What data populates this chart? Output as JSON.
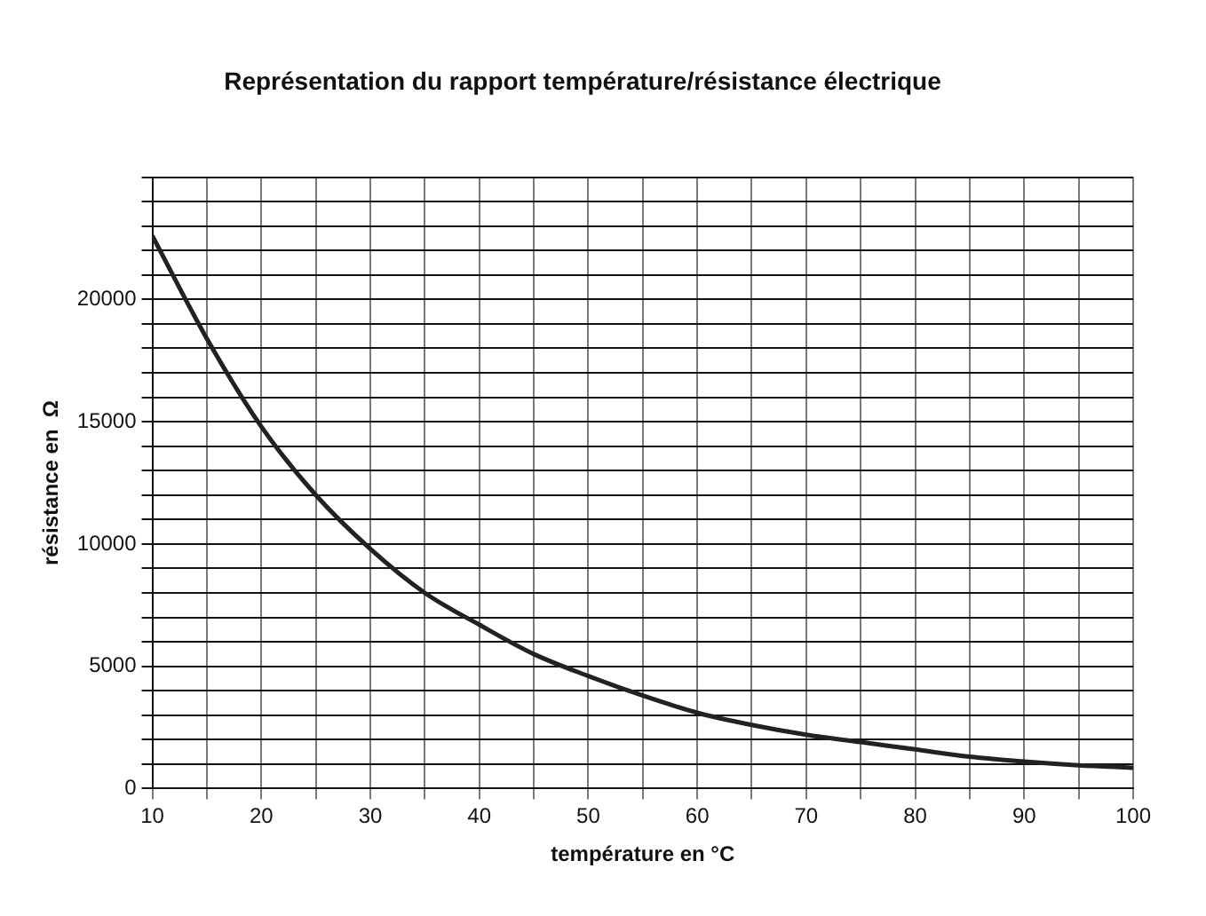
{
  "chart_data": {
    "type": "line",
    "title": "Représentation du rapport température/résistance électrique",
    "xlabel": "température en °C",
    "ylabel": "résistance en  Ω",
    "x": [
      10,
      15,
      20,
      25,
      30,
      35,
      40,
      45,
      50,
      55,
      60,
      65,
      70,
      75,
      80,
      85,
      90,
      95,
      100
    ],
    "series": [
      {
        "color": "#222222",
        "values": [
          22600,
          18400,
          14800,
          12000,
          9800,
          8000,
          6700,
          5500,
          4600,
          3800,
          3100,
          2600,
          2200,
          1900,
          1600,
          1300,
          1100,
          950,
          850
        ]
      }
    ],
    "xlim": [
      10,
      100
    ],
    "xticks": [
      10,
      {
        "value": 15,
        "label": null
      },
      20,
      {
        "value": 25,
        "label": null
      },
      30,
      {
        "value": 35,
        "label": null
      },
      40,
      {
        "value": 45,
        "label": null
      },
      50,
      {
        "value": 55,
        "label": null
      },
      60,
      {
        "value": 65,
        "label": null
      },
      70,
      {
        "value": 75,
        "label": null
      },
      80,
      {
        "value": 85,
        "label": null
      },
      90,
      {
        "value": 95,
        "label": null
      },
      100
    ],
    "ylim": [
      0,
      25000
    ],
    "yticks": [
      0,
      {
        "value": 1000,
        "label": null
      },
      {
        "value": 2000,
        "label": null
      },
      {
        "value": 3000,
        "label": null
      },
      {
        "value": 4000,
        "label": null
      },
      5000,
      {
        "value": 6000,
        "label": null
      },
      {
        "value": 7000,
        "label": null
      },
      {
        "value": 8000,
        "label": null
      },
      {
        "value": 9000,
        "label": null
      },
      10000,
      {
        "value": 11000,
        "label": null
      },
      {
        "value": 12000,
        "label": null
      },
      {
        "value": 13000,
        "label": null
      },
      {
        "value": 14000,
        "label": null
      },
      15000,
      {
        "value": 16000,
        "label": null
      },
      {
        "value": 17000,
        "label": null
      },
      {
        "value": 18000,
        "label": null
      },
      {
        "value": 19000,
        "label": null
      },
      20000,
      {
        "value": 21000,
        "label": null
      },
      {
        "value": 22000,
        "label": null
      },
      {
        "value": 23000,
        "label": null
      },
      {
        "value": 24000,
        "label": null
      },
      {
        "value": 25000,
        "label": null
      }
    ],
    "grid": true,
    "marker": "none",
    "line_style": "solid",
    "legend": false
  }
}
